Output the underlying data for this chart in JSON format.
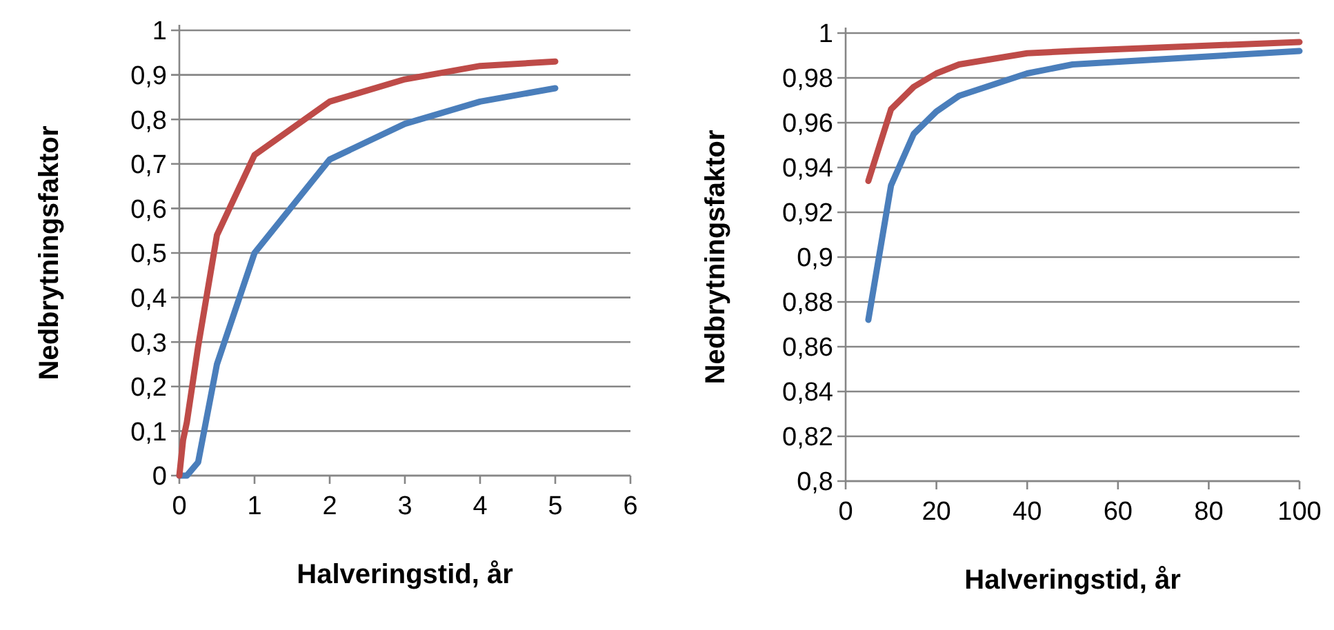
{
  "chart_data": [
    {
      "type": "line",
      "xlabel": "Halveringstid, år",
      "ylabel": "Nedbrytningsfaktor",
      "x": [
        0,
        0.05,
        0.1,
        0.25,
        0.5,
        1,
        2,
        3,
        4,
        5
      ],
      "series": [
        {
          "color": "#4a7ebb",
          "values": [
            0,
            0,
            0,
            0.03,
            0.25,
            0.5,
            0.71,
            0.79,
            0.84,
            0.87
          ]
        },
        {
          "color": "#be4b48",
          "values": [
            0,
            0.08,
            0.12,
            0.29,
            0.54,
            0.72,
            0.84,
            0.89,
            0.92,
            0.93
          ]
        }
      ],
      "xlim": [
        0,
        6
      ],
      "xticks": [
        0,
        1,
        2,
        3,
        4,
        5,
        6
      ],
      "ylim": [
        0,
        1
      ],
      "yticks": [
        {
          "value": 0,
          "label": "0"
        },
        {
          "value": 0.1,
          "label": "0,1"
        },
        {
          "value": 0.2,
          "label": "0,2"
        },
        {
          "value": 0.3,
          "label": "0,3"
        },
        {
          "value": 0.4,
          "label": "0,4"
        },
        {
          "value": 0.5,
          "label": "0,5"
        },
        {
          "value": 0.6,
          "label": "0,6"
        },
        {
          "value": 0.7,
          "label": "0,7"
        },
        {
          "value": 0.8,
          "label": "0,8"
        },
        {
          "value": 0.9,
          "label": "0,9"
        },
        {
          "value": 1,
          "label": "1"
        }
      ],
      "grid": "y",
      "marker": "none",
      "line_style": "solid"
    },
    {
      "type": "line",
      "xlabel": "Halveringstid, år",
      "ylabel": "Nedbrytningsfaktor",
      "x": [
        5,
        10,
        15,
        20,
        25,
        40,
        50,
        100
      ],
      "series": [
        {
          "color": "#4a7ebb",
          "values": [
            0.872,
            0.932,
            0.955,
            0.965,
            0.972,
            0.982,
            0.986,
            0.992
          ]
        },
        {
          "color": "#be4b48",
          "values": [
            0.934,
            0.966,
            0.976,
            0.982,
            0.986,
            0.991,
            0.992,
            0.996
          ]
        }
      ],
      "xlim": [
        0,
        100
      ],
      "xticks": [
        0,
        20,
        40,
        60,
        80,
        100
      ],
      "ylim": [
        0.8,
        1
      ],
      "yticks": [
        {
          "value": 0.8,
          "label": "0,8"
        },
        {
          "value": 0.82,
          "label": "0,82"
        },
        {
          "value": 0.84,
          "label": "0,84"
        },
        {
          "value": 0.86,
          "label": "0,86"
        },
        {
          "value": 0.88,
          "label": "0,88"
        },
        {
          "value": 0.9,
          "label": "0,9"
        },
        {
          "value": 0.92,
          "label": "0,92"
        },
        {
          "value": 0.94,
          "label": "0,94"
        },
        {
          "value": 0.96,
          "label": "0,96"
        },
        {
          "value": 0.98,
          "label": "0,98"
        },
        {
          "value": 1,
          "label": "1"
        }
      ],
      "grid": "y",
      "marker": "none",
      "line_style": "solid"
    }
  ]
}
